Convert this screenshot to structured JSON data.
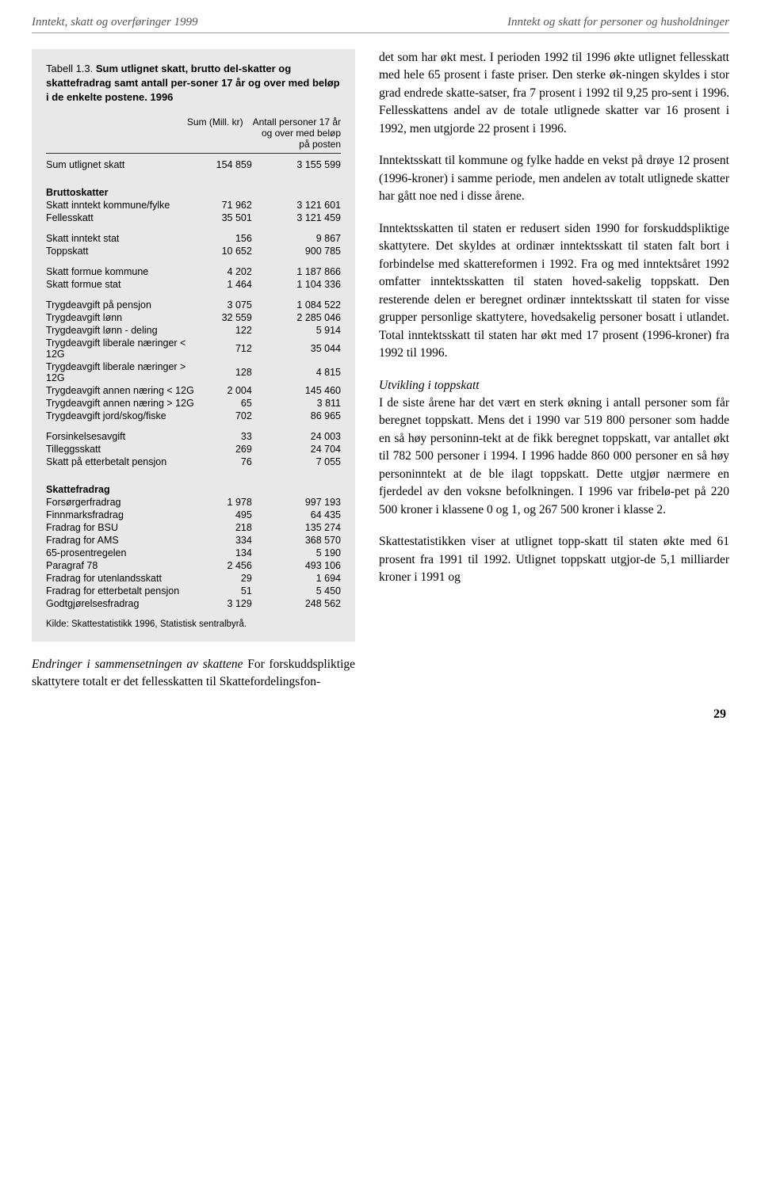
{
  "header": {
    "left": "Inntekt, skatt og overføringer 1999",
    "right": "Inntekt og skatt for personer og husholdninger"
  },
  "table": {
    "titleNum": "Tabell 1.3.",
    "titleDesc": "Sum utlignet skatt, brutto del-skatter og skattefradrag samt antall per-soner 17 år og over med beløp i de enkelte postene. 1996",
    "colHeader": {
      "sum": "Sum (Mill. kr)",
      "persons": "Antall personer 17 år og over med beløp på posten"
    },
    "rows": [
      {
        "label": "Sum utlignet skatt",
        "v1": "154 859",
        "v2": "3 155 599",
        "bold": false,
        "gapAfter": true
      },
      {
        "label": "Bruttoskatter",
        "v1": "",
        "v2": "",
        "bold": true
      },
      {
        "label": "Skatt inntekt kommune/fylke",
        "v1": "71 962",
        "v2": "3 121 601"
      },
      {
        "label": "Fellesskatt",
        "v1": "35 501",
        "v2": "3 121 459",
        "gapAfter": true
      },
      {
        "label": "Skatt inntekt stat",
        "v1": "156",
        "v2": "9 867"
      },
      {
        "label": "Toppskatt",
        "v1": "10 652",
        "v2": "900 785",
        "gapAfter": true
      },
      {
        "label": "Skatt formue kommune",
        "v1": "4 202",
        "v2": "1 187 866"
      },
      {
        "label": "Skatt formue stat",
        "v1": "1 464",
        "v2": "1 104 336",
        "gapAfter": true
      },
      {
        "label": "Trygdeavgift på pensjon",
        "v1": "3 075",
        "v2": "1 084 522"
      },
      {
        "label": "Trygdeavgift lønn",
        "v1": "32 559",
        "v2": "2 285 046"
      },
      {
        "label": "Trygdeavgift lønn - deling",
        "v1": "122",
        "v2": "5 914"
      },
      {
        "label": "Trygdeavgift liberale næringer < 12G",
        "v1": "712",
        "v2": "35 044"
      },
      {
        "label": "Trygdeavgift liberale næringer > 12G",
        "v1": "128",
        "v2": "4 815"
      },
      {
        "label": "Trygdeavgift annen næring < 12G",
        "v1": "2 004",
        "v2": "145 460"
      },
      {
        "label": "Trygdeavgift annen næring > 12G",
        "v1": "65",
        "v2": "3 811"
      },
      {
        "label": "Trygdeavgift jord/skog/fiske",
        "v1": "702",
        "v2": "86 965",
        "gapAfter": true
      },
      {
        "label": "Forsinkelsesavgift",
        "v1": "33",
        "v2": "24 003"
      },
      {
        "label": "Tilleggsskatt",
        "v1": "269",
        "v2": "24 704"
      },
      {
        "label": "Skatt på etterbetalt pensjon",
        "v1": "76",
        "v2": "7 055",
        "gapAfter": true
      },
      {
        "label": "Skattefradrag",
        "v1": "",
        "v2": "",
        "bold": true
      },
      {
        "label": "Forsørgerfradrag",
        "v1": "1 978",
        "v2": "997 193"
      },
      {
        "label": "Finnmarksfradrag",
        "v1": "495",
        "v2": "64 435"
      },
      {
        "label": "Fradrag for BSU",
        "v1": "218",
        "v2": "135 274"
      },
      {
        "label": "Fradrag for AMS",
        "v1": "334",
        "v2": "368 570"
      },
      {
        "label": "65-prosentregelen",
        "v1": "134",
        "v2": "5 190"
      },
      {
        "label": "Paragraf 78",
        "v1": "2 456",
        "v2": "493 106"
      },
      {
        "label": "Fradrag for utenlandsskatt",
        "v1": "29",
        "v2": "1 694"
      },
      {
        "label": "Fradrag for etterbetalt pensjon",
        "v1": "51",
        "v2": "5 450"
      },
      {
        "label": "Godtgjørelsesfradrag",
        "v1": "3 129",
        "v2": "248 562"
      }
    ],
    "source": "Kilde: Skattestatistikk 1996, Statistisk sentralbyrå."
  },
  "leftBottom": {
    "head": "Endringer i sammensetningen av skattene",
    "text": "For forskuddspliktige skattytere totalt er det fellesskatten til Skattefordelingsfon-"
  },
  "right": {
    "p1": "det som har økt mest. I perioden 1992 til 1996 økte utlignet fellesskatt med hele 65 prosent i faste priser. Den sterke øk-ningen skyldes i stor grad endrede skatte-satser, fra 7 prosent i 1992 til 9,25 pro-sent i 1996. Fellesskattens andel av de totale utlignede skatter var 16 prosent i 1992, men utgjorde 22 prosent i 1996.",
    "p2": "Inntektsskatt til kommune og fylke hadde en vekst på drøye 12 prosent (1996-kroner) i samme periode, men andelen av totalt utlignede skatter har gått noe ned i disse årene.",
    "p3": "Inntektsskatten til staten er redusert siden 1990 for forskuddspliktige skattytere. Det skyldes at ordinær inntektsskatt til staten falt bort i forbindelse med skattereformen i 1992. Fra og med inntektsåret 1992 omfatter inntektsskatten til staten hoved-sakelig toppskatt. Den resterende delen er beregnet ordinær inntektsskatt til staten for visse grupper personlige skattytere, hovedsakelig personer bosatt i utlandet. Total inntektsskatt til staten har økt med 17 prosent (1996-kroner) fra 1992 til 1996.",
    "p4head": "Utvikling i toppskatt",
    "p4": "I de siste årene har det vært en sterk økning i antall personer som får beregnet toppskatt. Mens det i 1990 var 519 800 personer som hadde en så høy personinn-tekt at de fikk beregnet toppskatt, var antallet økt til 782 500 personer i 1994. I 1996 hadde 860 000 personer en så høy personinntekt at de ble ilagt toppskatt. Dette utgjør nærmere en fjerdedel av den voksne befolkningen. I 1996 var fribelø-pet på 220 500 kroner i klassene 0 og 1, og 267 500 kroner i klasse 2.",
    "p5": "Skattestatistikken viser at utlignet topp-skatt til staten økte med 61 prosent fra 1991 til 1992. Utlignet toppskatt utgjor-de 5,1 milliarder kroner i 1991 og"
  },
  "pageNum": "29"
}
